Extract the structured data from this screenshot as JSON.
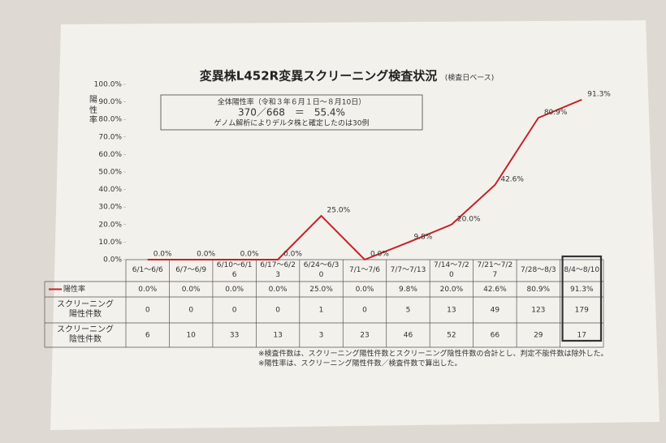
{
  "chart_data": {
    "type": "line",
    "title": "変異株L452R変異スクリーニング検査状況",
    "subtitle": "(検査日ベース)",
    "y_label": "陽性率",
    "annotation_box": [
      "全体陽性率（令和３年６月１日〜８月10日）",
      "370／668　＝　55.4%",
      "ゲノム解析によりデルタ株と確定したのは30例"
    ],
    "notes": [
      "※検査件数は、スクリーニング陽性件数とスクリーニング陰性件数の合計とし、判定不能件数は除外した。",
      "※陽性率は、スクリーニング陽性件数／検査件数で算出した。"
    ],
    "categories": [
      "6/1〜6/6",
      "6/7〜6/9",
      "6/10〜6/16",
      "6/17〜6/23",
      "6/24〜6/30",
      "7/1〜7/6",
      "7/7〜7/13",
      "7/14〜7/20",
      "7/21〜7/27",
      "7/28〜8/3",
      "8/4〜8/10"
    ],
    "series": [
      {
        "name": "陽性率",
        "color": "#c8202a",
        "values": [
          0,
          0,
          0,
          0,
          25,
          0,
          9.8,
          20,
          42.6,
          80.9,
          91.3
        ],
        "value_labels": [
          "0.0%",
          "0.0%",
          "0.0%",
          "0.0%",
          "25.0%",
          "0.0%",
          "9.8%",
          "20.0%",
          "42.6%",
          "80.9%",
          "91.3%"
        ]
      }
    ],
    "table_rows": [
      {
        "name": "スクリーニング陽性件数",
        "values": [
          0,
          0,
          0,
          0,
          1,
          0,
          5,
          13,
          49,
          123,
          179
        ]
      },
      {
        "name": "スクリーニング陰性件数",
        "values": [
          6,
          10,
          33,
          13,
          3,
          23,
          46,
          52,
          66,
          29,
          17
        ]
      }
    ],
    "ylim": [
      0,
      100
    ],
    "yticks": [
      {
        "value": 0,
        "label": "0.0%"
      },
      {
        "value": 10,
        "label": "10.0%"
      },
      {
        "value": 20,
        "label": "20.0%"
      },
      {
        "value": 30,
        "label": "30.0%"
      },
      {
        "value": 40,
        "label": "40.0%"
      },
      {
        "value": 50,
        "label": "50.0%"
      },
      {
        "value": 60,
        "label": "60.0%"
      },
      {
        "value": 70,
        "label": "70.0%"
      },
      {
        "value": 80,
        "label": "80.0%"
      },
      {
        "value": 90,
        "label": "90.0%"
      },
      {
        "value": 100,
        "label": "100.0%"
      }
    ],
    "grid": false,
    "highlight_last": true
  }
}
